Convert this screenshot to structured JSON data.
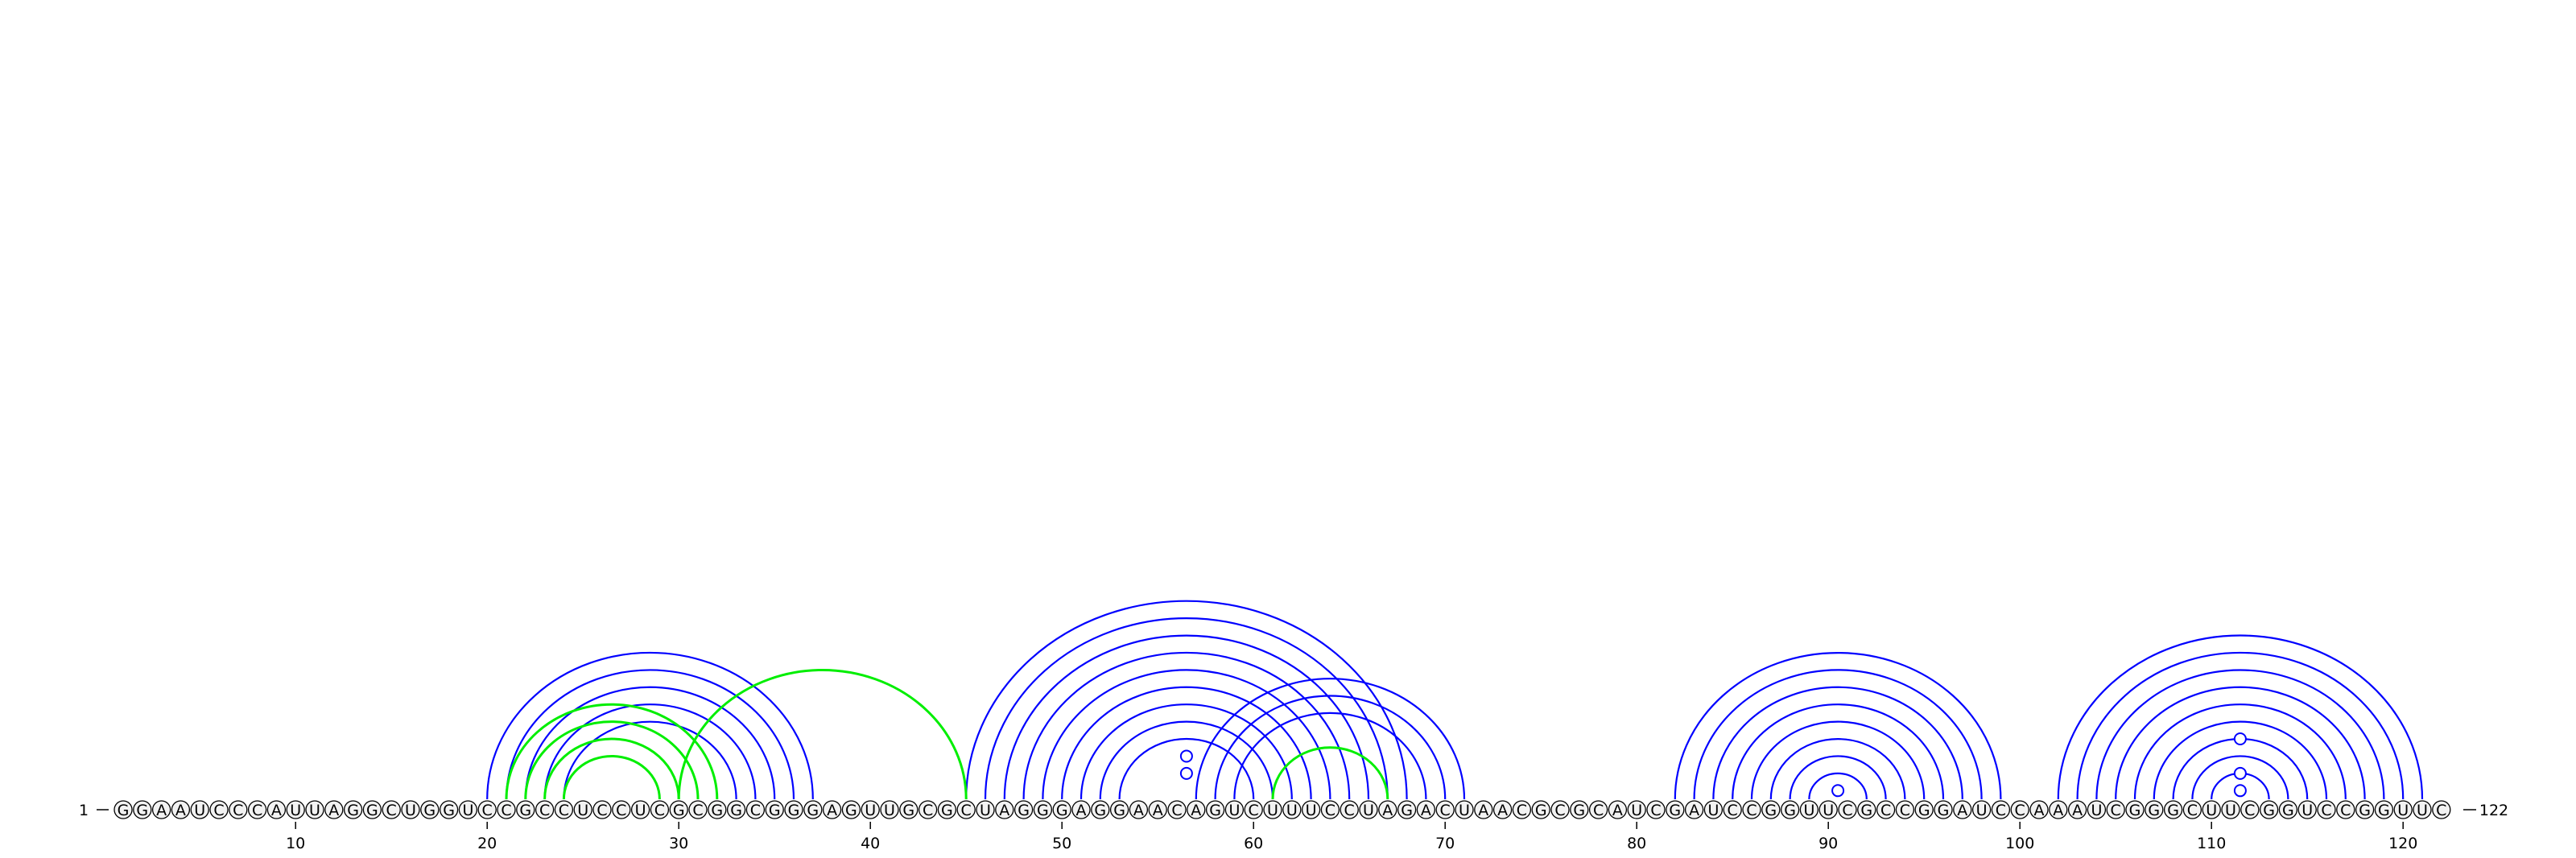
{
  "sequence": "GGAAUCCCAUUAGGCUGGUCCGCCUCCUCGCGGCGGGAGUUGCGCUAGGGAGGAACAGUCUUUCCUAGACUAACGCGCAUCGAUCCGGUUCGCCGGAUCCAAAUCGGGCUUCGGUCCGGUUC",
  "start_label": "1",
  "end_label": "122",
  "ticks": [
    10,
    20,
    30,
    40,
    50,
    60,
    70,
    80,
    90,
    100,
    110,
    120
  ],
  "colors": {
    "primary_pair": "#0000ff",
    "alternate_pair": "#00ee00",
    "nucleotide_fill": "#f2f2f2",
    "nucleotide_stroke": "#000000"
  },
  "pairs": {
    "blue": [
      [
        20,
        37
      ],
      [
        21,
        36
      ],
      [
        22,
        35
      ],
      [
        23,
        34
      ],
      [
        24,
        33
      ],
      [
        45,
        68
      ],
      [
        46,
        67
      ],
      [
        47,
        66
      ],
      [
        48,
        65
      ],
      [
        49,
        64
      ],
      [
        50,
        63
      ],
      [
        51,
        62
      ],
      [
        52,
        61
      ],
      [
        53,
        60
      ],
      [
        57,
        71
      ],
      [
        58,
        70
      ],
      [
        59,
        69
      ],
      [
        82,
        99
      ],
      [
        83,
        98
      ],
      [
        84,
        97
      ],
      [
        85,
        96
      ],
      [
        86,
        95
      ],
      [
        87,
        94
      ],
      [
        88,
        93
      ],
      [
        89,
        92
      ],
      [
        102,
        121
      ],
      [
        103,
        120
      ],
      [
        104,
        119
      ],
      [
        105,
        118
      ],
      [
        106,
        117
      ],
      [
        107,
        116
      ],
      [
        108,
        115
      ],
      [
        109,
        114
      ],
      [
        110,
        113
      ]
    ],
    "green": [
      [
        21,
        32
      ],
      [
        22,
        31
      ],
      [
        23,
        30
      ],
      [
        24,
        29
      ],
      [
        30,
        45
      ],
      [
        61,
        67
      ]
    ]
  },
  "unpaired_loops": [
    [
      55,
      58
    ],
    [
      54,
      59
    ],
    [
      90,
      91
    ],
    [
      111,
      112
    ],
    [
      110,
      113
    ],
    [
      108,
      115
    ]
  ]
}
